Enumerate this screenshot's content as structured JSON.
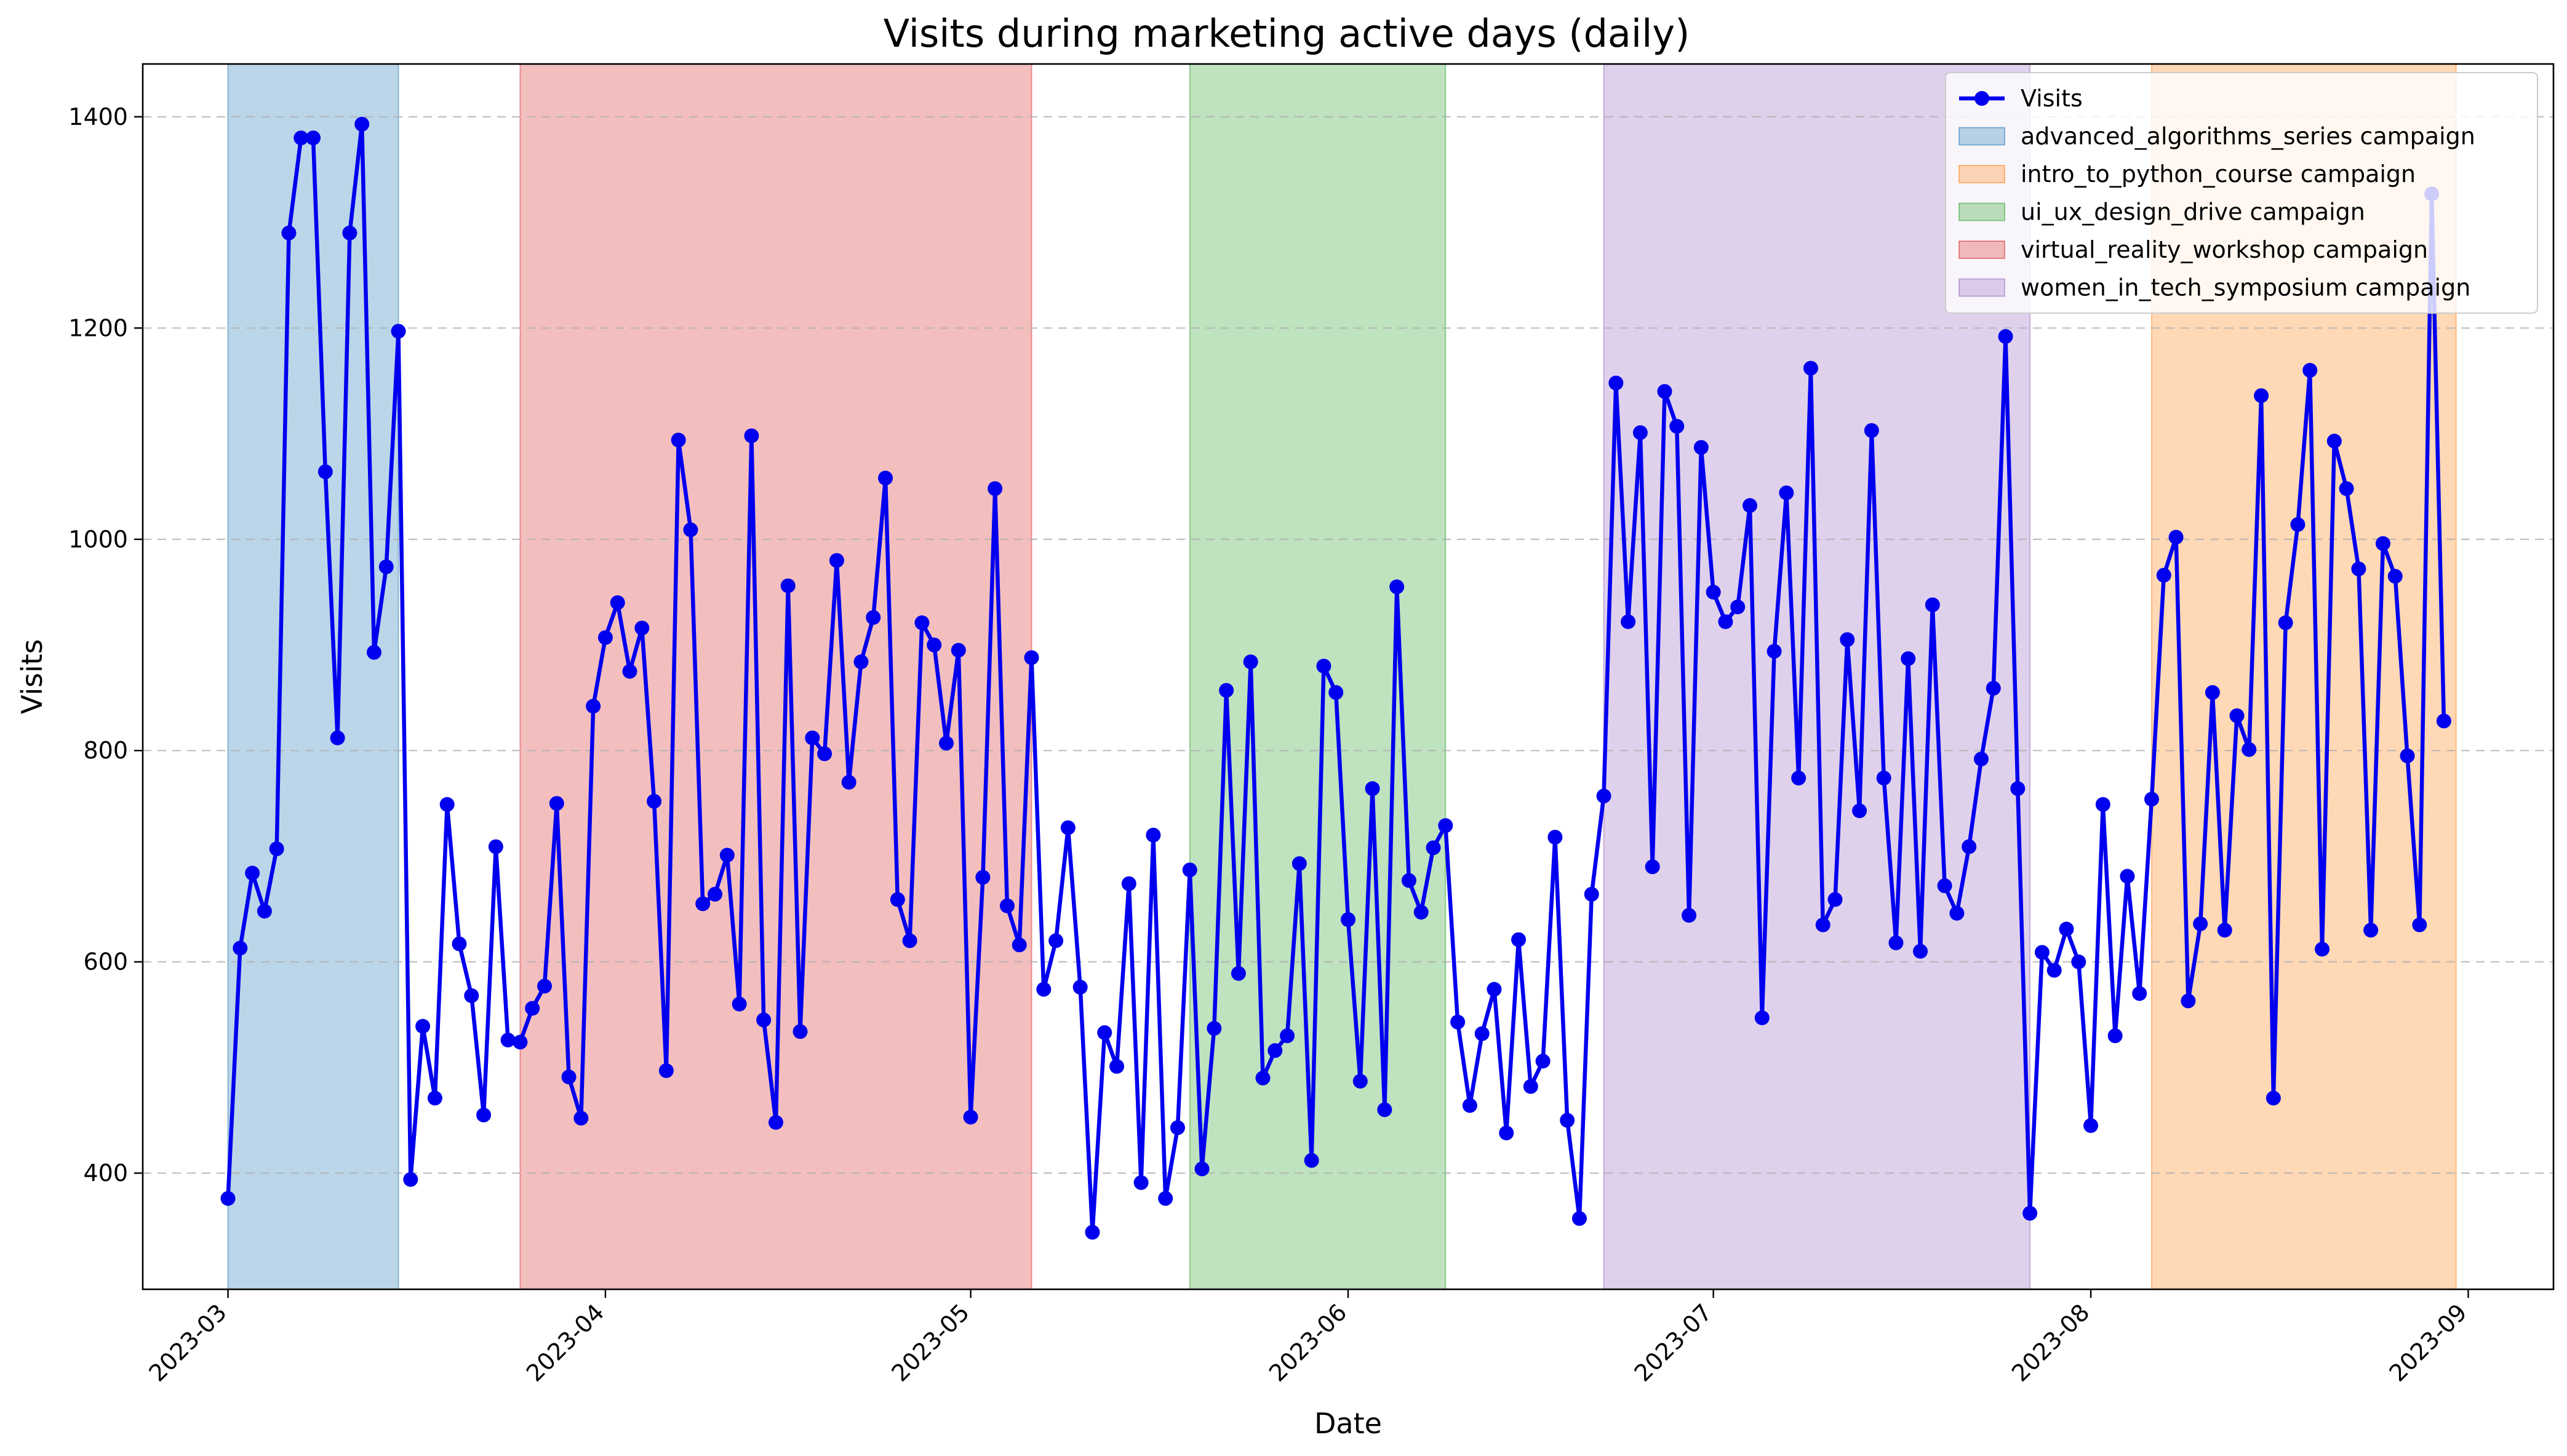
{
  "chart_data": {
    "type": "line",
    "title": "Visits during marketing active days (daily)",
    "xlabel": "Date",
    "ylabel": "Visits",
    "x_start": "2023-03-01",
    "xlim": [
      "2023-02-22",
      "2023-09-08"
    ],
    "ylim": [
      290,
      1450
    ],
    "xticks": [
      "2023-03",
      "2023-04",
      "2023-05",
      "2023-06",
      "2023-07",
      "2023-08",
      "2023-09"
    ],
    "xtick_dates": [
      "2023-03-01",
      "2023-04-01",
      "2023-05-01",
      "2023-06-01",
      "2023-07-01",
      "2023-08-01",
      "2023-09-01"
    ],
    "yticks": [
      400,
      600,
      800,
      1000,
      1200,
      1400
    ],
    "grid": "y-dashed",
    "legend_position": "top-right",
    "series": [
      {
        "name": "Visits",
        "color": "#0000ee",
        "values": [
          376,
          613,
          684,
          648,
          707,
          1290,
          1380,
          1380,
          1064,
          812,
          1290,
          1393,
          893,
          974,
          1197,
          394,
          539,
          471,
          749,
          617,
          568,
          455,
          709,
          526,
          524,
          556,
          577,
          750,
          491,
          452,
          842,
          907,
          940,
          875,
          916,
          752,
          497,
          1094,
          1009,
          655,
          664,
          701,
          560,
          1098,
          545,
          448,
          956,
          534,
          812,
          797,
          980,
          770,
          884,
          926,
          1058,
          659,
          620,
          921,
          900,
          807,
          895,
          453,
          680,
          1048,
          653,
          616,
          888,
          574,
          620,
          727,
          576,
          344,
          533,
          501,
          674,
          391,
          720,
          376,
          443,
          687,
          404,
          537,
          857,
          589,
          884,
          490,
          516,
          530,
          693,
          412,
          880,
          855,
          640,
          487,
          764,
          460,
          955,
          677,
          647,
          708,
          729,
          543,
          464,
          532,
          574,
          438,
          621,
          482,
          506,
          718,
          450,
          357,
          664,
          757,
          1148,
          922,
          1101,
          690,
          1140,
          1107,
          644,
          1087,
          950,
          922,
          936,
          1032,
          547,
          894,
          1044,
          774,
          1162,
          635,
          659,
          905,
          743,
          1103,
          774,
          618,
          887,
          610,
          938,
          672,
          646,
          709,
          792,
          859,
          1192,
          764,
          362,
          609,
          592,
          631,
          600,
          445,
          749,
          530,
          681,
          570,
          754,
          966,
          1002,
          563,
          636,
          855,
          630,
          833,
          801,
          1136,
          471,
          921,
          1014,
          1160,
          612,
          1093,
          1048,
          972,
          630,
          996,
          965,
          795,
          635,
          1327,
          828
        ]
      }
    ],
    "campaigns": [
      {
        "name": "advanced_algorithms_series campaign",
        "start": "2023-03-01",
        "end": "2023-03-15",
        "color": "#1f77b4"
      },
      {
        "name": "intro_to_python_course campaign",
        "start": "2023-08-06",
        "end": "2023-08-31",
        "color": "#ff7f0e"
      },
      {
        "name": "ui_ux_design_drive campaign",
        "start": "2023-05-19",
        "end": "2023-06-09",
        "color": "#2ca02c"
      },
      {
        "name": "virtual_reality_workshop campaign",
        "start": "2023-03-25",
        "end": "2023-05-06",
        "color": "#d62728"
      },
      {
        "name": "women_in_tech_symposium campaign",
        "start": "2023-06-22",
        "end": "2023-07-27",
        "color": "#9467bd"
      }
    ]
  }
}
